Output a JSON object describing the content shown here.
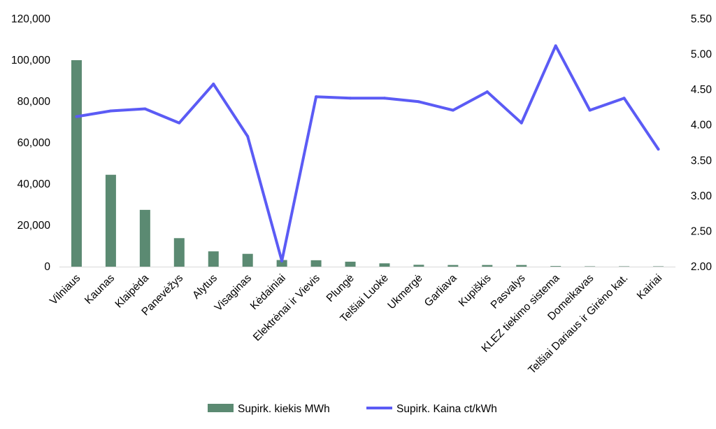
{
  "chart_data": {
    "type": "bar+line",
    "categories": [
      "Vilniaus",
      "Kaunas",
      "Klaipėda",
      "Panevėžys",
      "Alytus",
      "Visaginas",
      "Kėdainiai",
      "Elektrėnai ir Vievis",
      "Plungė",
      "Telšiai Luokė",
      "Ukmergė",
      "Garliava",
      "Kupiškis",
      "Pasvalys",
      "KLEZ tiekimo sistema",
      "Domeikavas",
      "Telšiai Dariaus ir Girėno kat.",
      "Kairiai"
    ],
    "series": [
      {
        "name": "Supirk. kiekis MWh",
        "type": "bar",
        "axis": "left",
        "color": "#5b8a72",
        "values": [
          100000,
          44500,
          27500,
          13800,
          7400,
          6200,
          3200,
          3100,
          2400,
          1600,
          900,
          800,
          800,
          800,
          300,
          100,
          50,
          50
        ]
      },
      {
        "name": "Supirk. Kaina ct/kWh",
        "type": "line",
        "axis": "right",
        "color": "#5b5bf5",
        "values": [
          4.12,
          4.2,
          4.23,
          4.03,
          4.58,
          3.84,
          2.08,
          4.4,
          4.38,
          4.38,
          4.33,
          4.21,
          4.47,
          4.03,
          5.12,
          4.21,
          4.38,
          3.66
        ]
      }
    ],
    "y_left": {
      "ylim": [
        0,
        120000
      ],
      "ticks": [
        0,
        20000,
        40000,
        60000,
        80000,
        100000,
        120000
      ],
      "tick_labels": [
        "0",
        "20,000",
        "40,000",
        "60,000",
        "80,000",
        "100,000",
        "120,000"
      ]
    },
    "y_right": {
      "ylim": [
        2.0,
        5.5
      ],
      "ticks": [
        2.0,
        2.5,
        3.0,
        3.5,
        4.0,
        4.5,
        5.0,
        5.5
      ],
      "tick_labels": [
        "2.00",
        "2.50",
        "3.00",
        "3.50",
        "4.00",
        "4.50",
        "5.00",
        "5.50"
      ]
    },
    "grid": false,
    "legend_position": "bottom"
  }
}
